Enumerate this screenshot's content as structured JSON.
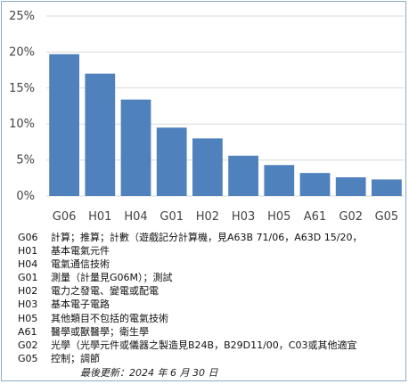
{
  "chart_data": {
    "type": "bar",
    "categories": [
      "G06",
      "H01",
      "H04",
      "G01",
      "H02",
      "H03",
      "H05",
      "A61",
      "G02",
      "G05"
    ],
    "values": [
      19.7,
      17.0,
      13.4,
      9.5,
      8.0,
      5.6,
      4.3,
      3.2,
      2.6,
      2.3
    ],
    "ylim": [
      0,
      25
    ],
    "yticks": [
      "0%",
      "5%",
      "10%",
      "15%",
      "20%",
      "25%"
    ],
    "bar_color": "#4f81bd",
    "grid": true
  },
  "legend": [
    {
      "code": "G06",
      "desc": "計算；推算；計數（遊戲記分計算機，見A63B 71/06，A63D 15/20，"
    },
    {
      "code": "H01",
      "desc": "基本電氣元件"
    },
    {
      "code": "H04",
      "desc": "電氣通信技術"
    },
    {
      "code": "G01",
      "desc": "測量（計量見G06M）；測試"
    },
    {
      "code": "H02",
      "desc": "電力之發電、變電或配電"
    },
    {
      "code": "H03",
      "desc": "基本電子電路"
    },
    {
      "code": "H05",
      "desc": "其他類目不包括的電氣技術"
    },
    {
      "code": "A61",
      "desc": "醫學或獸醫學；衛生學"
    },
    {
      "code": "G02",
      "desc": "光學（光學元件或儀器之製造見B24B，B29D11/00，C03或其他適宜"
    },
    {
      "code": "G05",
      "desc": "控制；調節"
    }
  ],
  "updated": "最後更新：2024 年 6 月 30 日"
}
